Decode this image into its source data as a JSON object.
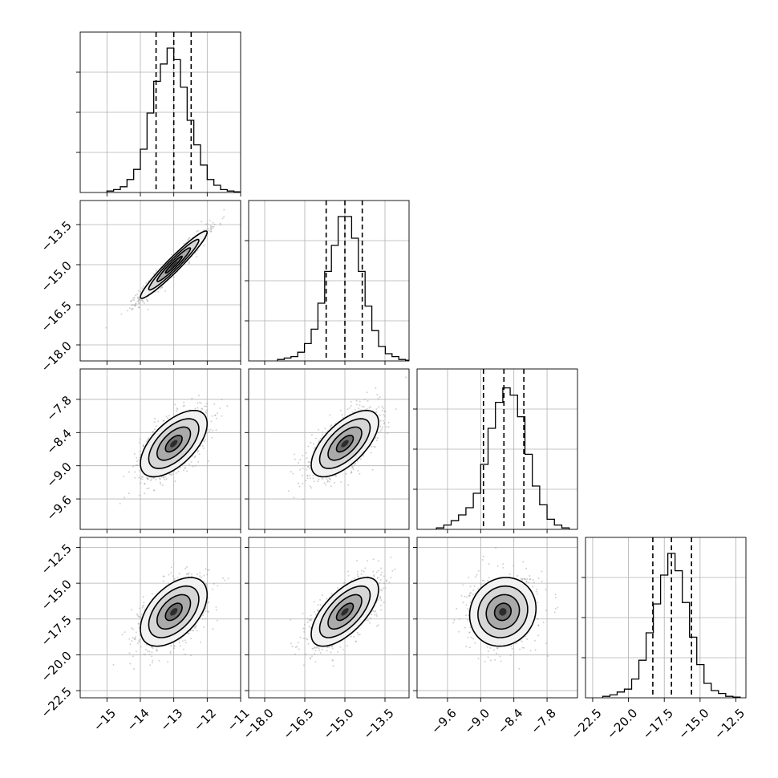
{
  "chart_data": {
    "type": "corner",
    "grid": true,
    "n_parameters": 4,
    "colors": {
      "line": "#000000",
      "grid": "#b0b0b0",
      "scatter": "#9a9a9a"
    },
    "parameters": [
      {
        "range": [
          -15.8,
          -11.0
        ],
        "ticks": [
          -15,
          -14,
          -13,
          -12,
          -11
        ],
        "tick_labels": [
          "−15",
          "−14",
          "−13",
          "−12",
          "−11"
        ],
        "mean": -13.0,
        "std": 0.5,
        "quantiles": [
          -13.53,
          -13.0,
          -12.48
        ],
        "hist": [
          0.01,
          0.02,
          0.04,
          0.09,
          0.16,
          0.3,
          0.55,
          0.77,
          0.89,
          1.0,
          0.92,
          0.73,
          0.5,
          0.33,
          0.19,
          0.09,
          0.05,
          0.02,
          0.01,
          0.005
        ]
      },
      {
        "range": [
          -18.6,
          -12.6
        ],
        "ticks": [
          -18.0,
          -16.5,
          -15.0,
          -13.5
        ],
        "tick_labels": [
          "−18.0",
          "−16.5",
          "−15.0",
          "−13.5"
        ],
        "mean": -15.0,
        "std": 0.63,
        "quantiles": [
          -15.7,
          -15.0,
          -14.35
        ],
        "hist": [
          0.01,
          0.02,
          0.03,
          0.06,
          0.12,
          0.22,
          0.4,
          0.62,
          0.8,
          1.0,
          1.0,
          0.85,
          0.62,
          0.38,
          0.21,
          0.1,
          0.05,
          0.03,
          0.01,
          0.005
        ]
      },
      {
        "range": [
          -10.15,
          -7.25
        ],
        "ticks": [
          -9.6,
          -9.0,
          -8.4,
          -7.8
        ],
        "tick_labels": [
          "−9.6",
          "−9.0",
          "−8.4",
          "−7.8"
        ],
        "mean": -8.6,
        "std": 0.3,
        "quantiles": [
          -8.95,
          -8.58,
          -8.22
        ],
        "hist": [
          0.01,
          0.03,
          0.06,
          0.1,
          0.15,
          0.25,
          0.45,
          0.7,
          0.88,
          0.98,
          0.93,
          0.78,
          0.52,
          0.3,
          0.17,
          0.07,
          0.03,
          0.01
        ]
      },
      {
        "range": [
          -23.0,
          -11.8
        ],
        "ticks": [
          -22.5,
          -20.0,
          -17.5,
          -15.0,
          -12.5
        ],
        "tick_labels": [
          "−22.5",
          "−20.0",
          "−17.5",
          "−15.0",
          "−12.5"
        ],
        "mean": -17.0,
        "std": 1.2,
        "quantiles": [
          -18.3,
          -17.0,
          -15.6
        ],
        "hist": [
          0.01,
          0.02,
          0.04,
          0.06,
          0.13,
          0.26,
          0.45,
          0.65,
          0.85,
          1.0,
          0.88,
          0.66,
          0.42,
          0.23,
          0.1,
          0.05,
          0.03,
          0.01,
          0.005
        ]
      }
    ],
    "correlations": {
      "1,0": 0.96,
      "2,0": 0.6,
      "2,1": 0.64,
      "3,0": 0.5,
      "3,1": 0.65,
      "3,2": 0.1
    }
  }
}
